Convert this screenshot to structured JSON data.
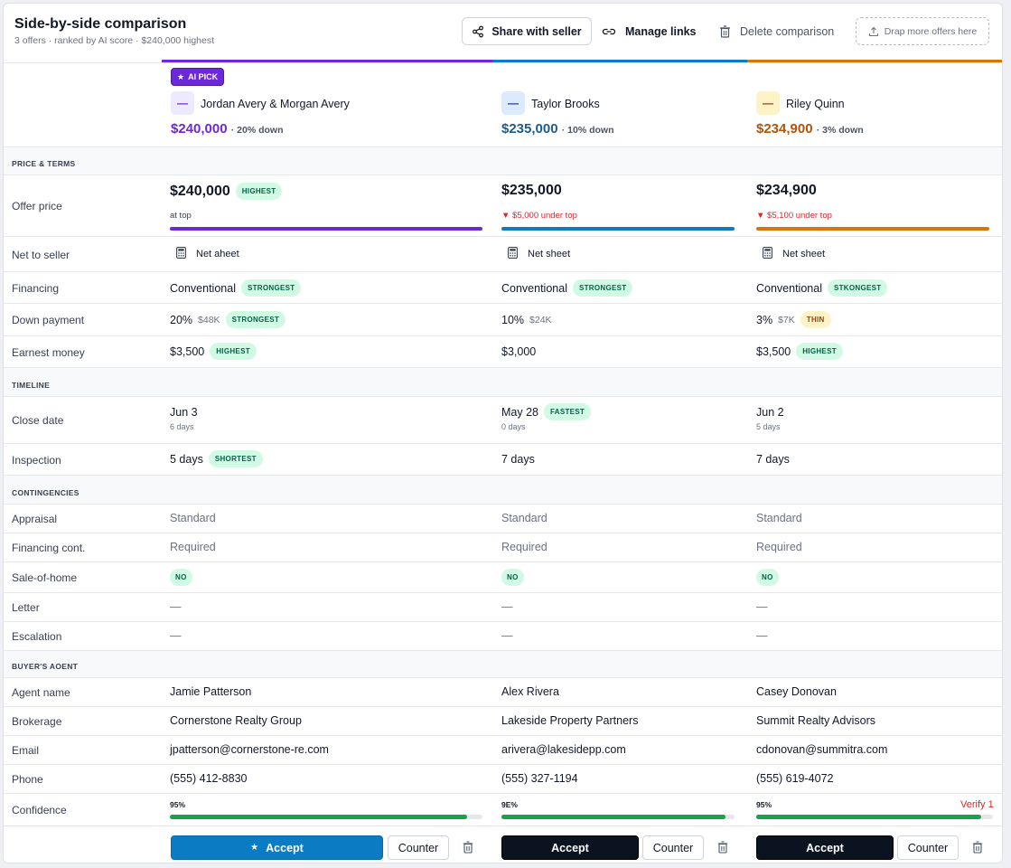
{
  "header": {
    "title": "Side-by-side comparison",
    "subtitle": "3 offers · ranked by AI score · $240,000 highest",
    "share_label": "Share with seller",
    "links_label": "Manage links",
    "delete_label": "Delete comparison",
    "drop_label": "Drap more offers here"
  },
  "colors": {
    "purple": "#6d28d9",
    "blue": "#0b7bc4",
    "orange": "#c2410c",
    "green": "#16a34a"
  },
  "offers": [
    {
      "badge": "AI PICK",
      "letter": "—",
      "name": "Jordan Avery & Morgan Avery",
      "price": "$240,000",
      "down_note": "· 20% down",
      "offer_price": "$240,000",
      "price_badge": "HIGHEST",
      "price_note": "at top",
      "net_label": "Net aheet",
      "financing": "Conventional",
      "financing_badge": "STRONGEST",
      "down_pct": "20%",
      "down_amt": "$48K",
      "down_badge": "STRONGEST",
      "earnest": "$3,500",
      "earnest_badge": "HIGHEST",
      "close_date": "Jun 3",
      "close_days": "6 days",
      "close_badge": "",
      "inspection": "5 days",
      "inspection_badge": "SHORTEST",
      "appraisal": "Standard",
      "financing_cont": "Required",
      "sale_of_home": "NO",
      "escalation": "—",
      "agent": "Jamie Patterson",
      "brokerage": "Cornerstone Realty Group",
      "email": "jpatterson@cornerstone-re.com",
      "phone": "(555) 412-8830",
      "confidence": "95%",
      "confidence_value": 0.95,
      "verify": "",
      "accept_label": "Accept",
      "counter_label": "Counter"
    },
    {
      "badge": "",
      "letter": "—",
      "name": "Taylor Brooks",
      "price": "$235,000",
      "down_note": "· 10% down",
      "offer_price": "$235,000",
      "price_badge": "",
      "price_note": "▼ $5,000 under top",
      "net_label": "Net sheet",
      "financing": "Conventional",
      "financing_badge": "STRONGEST",
      "down_pct": "10%",
      "down_amt": "$24K",
      "down_badge": "",
      "earnest": "$3,000",
      "earnest_badge": "",
      "close_date": "May 28",
      "close_days": "0 days",
      "close_badge": "FASTEST",
      "inspection": "7 days",
      "inspection_badge": "",
      "appraisal": "Standard",
      "financing_cont": "Required",
      "sale_of_home": "NO",
      "escalation": "—",
      "agent": "Alex Rivera",
      "brokerage": "Lakeside Property Partners",
      "email": "arivera@lakesidepp.com",
      "phone": "(555) 327-1194",
      "confidence": "9E%",
      "confidence_value": 0.96,
      "verify": "",
      "accept_label": "Accept",
      "counter_label": "Counter"
    },
    {
      "badge": "",
      "letter": "—",
      "name": "Riley Quinn",
      "price": "$234,900",
      "down_note": "· 3% down",
      "offer_price": "$234,900",
      "price_badge": "",
      "price_note": "▼ $5,100 under top",
      "net_label": "Net sheet",
      "financing": "Conventional",
      "financing_badge": "STKONGEST",
      "down_pct": "3%",
      "down_amt": "$7K",
      "down_badge": "THIN",
      "earnest": "$3,500",
      "earnest_badge": "HIGHEST",
      "close_date": "Jun 2",
      "close_days": "5 days",
      "close_badge": "",
      "inspection": "7 days",
      "inspection_badge": "",
      "appraisal": "Standard",
      "financing_cont": "Required",
      "sale_of_home": "NO",
      "escalation": "—",
      "agent": "Casey Donovan",
      "brokerage": "Summit Realty Advisors",
      "email": "cdonovan@summitra.com",
      "phone": "(555) 619-4072",
      "confidence": "95%",
      "confidence_value": 0.95,
      "verify": "Verify 1",
      "accept_label": "Accept",
      "counter_label": "Counter"
    }
  ],
  "sections": {
    "price_terms": "PRICE & TERMS",
    "timeline": "TIMELINE",
    "contingencies": "CONTINGENCIES",
    "buyers_agent": "BUYER'S AOENT"
  },
  "labels": {
    "offer_price": "Offer price",
    "net_to_seller": "Net to seller",
    "financing": "Financing",
    "down_payment": "Down payment",
    "earnest_money": "Earnest money",
    "close_date": "Close date",
    "inspection": "Inspection",
    "appraisal": "Appraisal",
    "financing_cont": "Financing cont.",
    "sale_of_home": "Sale-of-home",
    "letter": "Letter",
    "escalation": "Escalation",
    "agent_name": "Agent name",
    "brokerage": "Brokerage",
    "email": "Email",
    "phone": "Phone",
    "confidence": "Confidence"
  }
}
